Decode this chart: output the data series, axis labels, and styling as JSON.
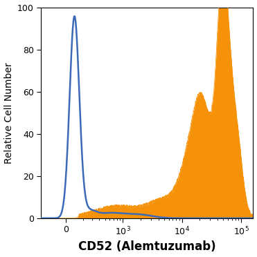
{
  "xlabel": "CD52 (Alemtuzumab)",
  "ylabel": "Relative Cell Number",
  "xlabel_fontsize": 12,
  "ylabel_fontsize": 10,
  "ylim": [
    0,
    100
  ],
  "yticks": [
    0,
    20,
    40,
    60,
    80,
    100
  ],
  "blue_color": "#3a6ab8",
  "orange_color": "#f5920a",
  "bg_color": "#ffffff",
  "linthresh": 300,
  "linscale": 0.4
}
